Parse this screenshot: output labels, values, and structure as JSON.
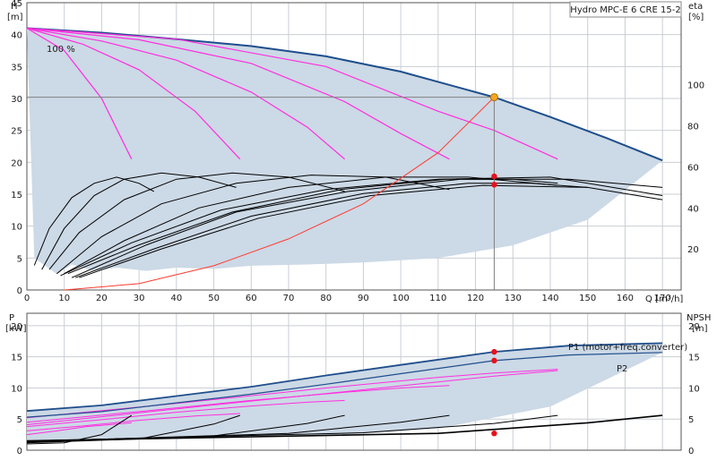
{
  "title_box": "Hydro MPC-E 6 CRE 15-2",
  "colors": {
    "envelope_fill": "#ccd9e6",
    "envelope_stroke": "#1f4e8c",
    "speed_curves": "#ff2ee0",
    "efficiency_curves": "#000000",
    "system_curve": "#ff3b30",
    "duty_point": "#f5a623",
    "red_marker": "#e8111b",
    "helper_line": "#808080"
  },
  "chart_data": [
    {
      "type": "line",
      "panel": "head-efficiency",
      "ylabel": "H",
      "yunit": "[m]",
      "y2label": "eta",
      "y2unit": "[%]",
      "xlabel": "Q [m³/h]",
      "xlim": [
        0,
        175
      ],
      "ylim": [
        0,
        45
      ],
      "y2lim": [
        0,
        140
      ],
      "xticks": [
        0,
        10,
        20,
        30,
        40,
        50,
        60,
        70,
        80,
        90,
        100,
        110,
        120,
        130,
        140,
        150,
        160,
        170
      ],
      "yticks": [
        0,
        5,
        10,
        15,
        20,
        25,
        30,
        35,
        40,
        45
      ],
      "y2ticks": [
        20,
        40,
        60,
        80,
        100
      ],
      "annotation_speed": "100 %",
      "grid": true,
      "envelope_max_curve": [
        [
          0,
          41
        ],
        [
          20,
          40.3
        ],
        [
          40,
          39.3
        ],
        [
          60,
          38.2
        ],
        [
          80,
          36.6
        ],
        [
          100,
          34.2
        ],
        [
          115,
          31.8
        ],
        [
          125,
          30.2
        ],
        [
          140,
          27.1
        ],
        [
          155,
          23.8
        ],
        [
          170,
          20.3
        ]
      ],
      "envelope_min_curve": [
        [
          2,
          5
        ],
        [
          8,
          2.5
        ],
        [
          12,
          4
        ],
        [
          18,
          3
        ],
        [
          24,
          3.5
        ],
        [
          32,
          3
        ],
        [
          40,
          3.5
        ],
        [
          50,
          3.3
        ],
        [
          60,
          3.8
        ],
        [
          75,
          4
        ],
        [
          90,
          4.3
        ],
        [
          110,
          5
        ],
        [
          130,
          7
        ],
        [
          150,
          11
        ],
        [
          170,
          20.3
        ]
      ],
      "reduced_speed_curves": [
        [
          [
            0,
            41
          ],
          [
            10,
            37.5
          ],
          [
            20,
            30
          ],
          [
            28,
            20.5
          ]
        ],
        [
          [
            0,
            41
          ],
          [
            15,
            38.5
          ],
          [
            30,
            34.5
          ],
          [
            45,
            28
          ],
          [
            57,
            20.5
          ]
        ],
        [
          [
            0,
            41
          ],
          [
            20,
            39
          ],
          [
            40,
            36
          ],
          [
            60,
            31
          ],
          [
            75,
            25.5
          ],
          [
            85,
            20.5
          ]
        ],
        [
          [
            0,
            41
          ],
          [
            30,
            39.2
          ],
          [
            60,
            35.5
          ],
          [
            85,
            29.5
          ],
          [
            100,
            24.5
          ],
          [
            113,
            20.5
          ]
        ],
        [
          [
            0,
            41
          ],
          [
            40,
            39.3
          ],
          [
            80,
            35
          ],
          [
            110,
            28
          ],
          [
            125,
            25
          ],
          [
            142,
            20.5
          ]
        ]
      ],
      "efficiency_curves_pct": [
        [
          [
            2,
            12
          ],
          [
            6,
            30
          ],
          [
            12,
            45
          ],
          [
            18,
            52
          ],
          [
            24,
            55
          ],
          [
            30,
            52
          ],
          [
            34,
            48
          ]
        ],
        [
          [
            4,
            10
          ],
          [
            10,
            30
          ],
          [
            18,
            46
          ],
          [
            26,
            54
          ],
          [
            36,
            57
          ],
          [
            46,
            55
          ],
          [
            56,
            50
          ]
        ],
        [
          [
            6,
            10
          ],
          [
            14,
            28
          ],
          [
            26,
            44
          ],
          [
            40,
            54
          ],
          [
            55,
            57
          ],
          [
            70,
            55
          ],
          [
            85,
            48
          ]
        ],
        [
          [
            8,
            8
          ],
          [
            20,
            26
          ],
          [
            36,
            42
          ],
          [
            56,
            52
          ],
          [
            76,
            56
          ],
          [
            96,
            55
          ],
          [
            113,
            49
          ]
        ],
        [
          [
            10,
            8
          ],
          [
            26,
            24
          ],
          [
            46,
            40
          ],
          [
            70,
            50
          ],
          [
            96,
            55
          ],
          [
            118,
            55
          ],
          [
            142,
            51
          ]
        ],
        [
          [
            12,
            6
          ],
          [
            32,
            22
          ],
          [
            56,
            38
          ],
          [
            86,
            48
          ],
          [
            116,
            54
          ],
          [
            145,
            54
          ],
          [
            170,
            50
          ]
        ],
        [
          [
            9,
            7
          ],
          [
            28,
            23
          ],
          [
            52,
            39
          ],
          [
            80,
            49
          ],
          [
            110,
            54
          ],
          [
            140,
            55
          ],
          [
            170,
            46
          ]
        ],
        [
          [
            14,
            6
          ],
          [
            36,
            20
          ],
          [
            62,
            35
          ],
          [
            92,
            46
          ],
          [
            122,
            51
          ],
          [
            150,
            50
          ],
          [
            170,
            44
          ]
        ],
        [
          [
            11,
            8
          ],
          [
            30,
            22
          ],
          [
            55,
            38
          ],
          [
            84,
            49
          ],
          [
            112,
            54
          ],
          [
            130,
            54
          ],
          [
            142,
            52
          ]
        ],
        [
          [
            13,
            6
          ],
          [
            34,
            20
          ],
          [
            60,
            36
          ],
          [
            90,
            47
          ],
          [
            118,
            52
          ],
          [
            135,
            52
          ],
          [
            150,
            50
          ]
        ]
      ],
      "system_curve": [
        [
          10,
          0
        ],
        [
          30,
          1
        ],
        [
          50,
          3.8
        ],
        [
          70,
          8
        ],
        [
          90,
          13.5
        ],
        [
          110,
          21.5
        ],
        [
          125,
          30.2
        ]
      ],
      "duty_point": {
        "q": 125,
        "h": 30.2
      },
      "red_markers_eta_pct": [
        [
          125,
          55.5
        ],
        [
          125,
          51.5
        ]
      ],
      "markers_head": [
        [
          125,
          17.8
        ],
        [
          125,
          16.5
        ]
      ]
    },
    {
      "type": "line",
      "panel": "power-npsh",
      "ylabel": "P",
      "yunit": "[kW]",
      "y2label": "NPSH",
      "y2unit": "[m]",
      "xlim": [
        0,
        175
      ],
      "ylim": [
        0,
        22
      ],
      "yticks": [
        0,
        5,
        10,
        15,
        20
      ],
      "y2ticks": [
        0,
        5,
        10,
        15,
        20
      ],
      "series_labels": [
        "P1 (motor+freq.converter)",
        "P2"
      ],
      "p1_curve": [
        [
          0,
          6.3
        ],
        [
          20,
          7.2
        ],
        [
          40,
          8.7
        ],
        [
          60,
          10.2
        ],
        [
          80,
          12
        ],
        [
          100,
          13.7
        ],
        [
          125,
          15.8
        ],
        [
          145,
          16.8
        ],
        [
          170,
          17.2
        ]
      ],
      "p2_curve": [
        [
          0,
          5.3
        ],
        [
          20,
          6.2
        ],
        [
          40,
          7.6
        ],
        [
          60,
          9
        ],
        [
          80,
          10.6
        ],
        [
          100,
          12.3
        ],
        [
          125,
          14.4
        ],
        [
          145,
          15.3
        ],
        [
          170,
          15.7
        ]
      ],
      "envelope_min_curve": [
        [
          0,
          1.5
        ],
        [
          40,
          1.8
        ],
        [
          80,
          2.3
        ],
        [
          110,
          3.5
        ],
        [
          140,
          7
        ],
        [
          170,
          15.7
        ]
      ],
      "reduced_power_curves": [
        [
          [
            0,
            2.5
          ],
          [
            8,
            3.1
          ],
          [
            16,
            3.8
          ],
          [
            28,
            4.4
          ]
        ],
        [
          [
            0,
            3.1
          ],
          [
            15,
            3.9
          ],
          [
            30,
            4.8
          ],
          [
            45,
            5.5
          ],
          [
            57,
            5.9
          ]
        ],
        [
          [
            0,
            3.8
          ],
          [
            20,
            4.9
          ],
          [
            40,
            6.1
          ],
          [
            60,
            7.1
          ],
          [
            75,
            7.7
          ],
          [
            85,
            8
          ]
        ],
        [
          [
            0,
            4.5
          ],
          [
            30,
            6.2
          ],
          [
            60,
            8
          ],
          [
            85,
            9.3
          ],
          [
            100,
            10
          ],
          [
            113,
            10.4
          ]
        ],
        [
          [
            0,
            5.2
          ],
          [
            40,
            7.5
          ],
          [
            80,
            10
          ],
          [
            110,
            11.7
          ],
          [
            125,
            12.4
          ],
          [
            142,
            13
          ]
        ],
        [
          [
            0,
            4.1
          ],
          [
            30,
            6
          ],
          [
            60,
            7.9
          ],
          [
            90,
            9.7
          ],
          [
            125,
            11.9
          ],
          [
            142,
            12.8
          ]
        ]
      ],
      "npsh_curves": [
        [
          [
            0,
            1
          ],
          [
            10,
            1.2
          ],
          [
            20,
            2.5
          ],
          [
            28,
            5.6
          ]
        ],
        [
          [
            0,
            1.2
          ],
          [
            30,
            1.8
          ],
          [
            50,
            4.2
          ],
          [
            57,
            5.6
          ]
        ],
        [
          [
            0,
            1.3
          ],
          [
            50,
            2.3
          ],
          [
            75,
            4.3
          ],
          [
            85,
            5.6
          ]
        ],
        [
          [
            0,
            1.4
          ],
          [
            70,
            2.7
          ],
          [
            100,
            4.5
          ],
          [
            113,
            5.6
          ]
        ],
        [
          [
            0,
            1.5
          ],
          [
            90,
            2.8
          ],
          [
            125,
            4.3
          ],
          [
            142,
            5.6
          ]
        ],
        [
          [
            0,
            1.5
          ],
          [
            110,
            2.7
          ],
          [
            150,
            4.4
          ],
          [
            170,
            5.6
          ]
        ]
      ],
      "markers": [
        [
          125,
          15.8
        ],
        [
          125,
          14.4
        ],
        [
          125,
          2.7
        ]
      ]
    }
  ]
}
